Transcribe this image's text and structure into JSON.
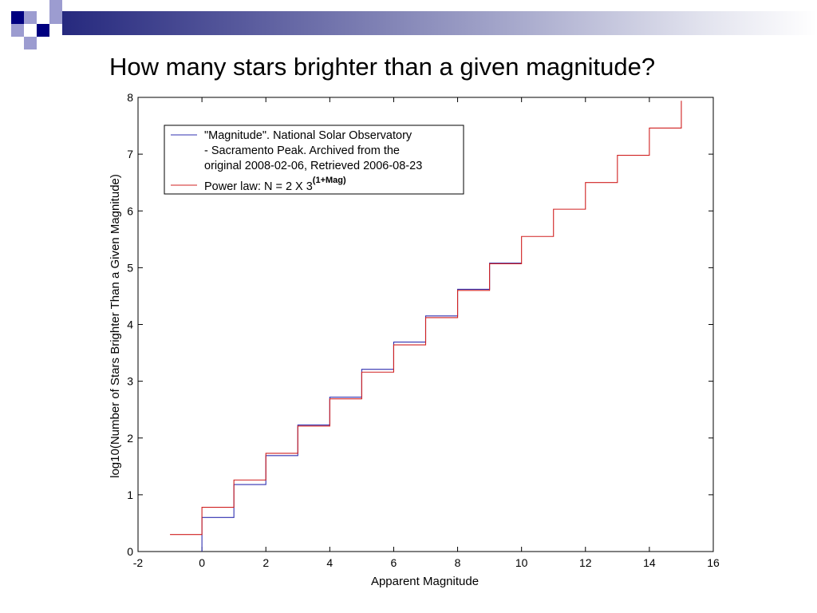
{
  "slide": {
    "title": "How many stars brighter than a given magnitude?",
    "colors": {
      "decor_dark": "#000080",
      "decor_light": "#9c9cd0"
    }
  },
  "chart_data": {
    "type": "line",
    "title": "",
    "xlabel": "Apparent Magnitude",
    "ylabel": "log10(Number of Stars Brighter Than a Given Magnitude)",
    "xlim": [
      -2,
      16
    ],
    "ylim": [
      0,
      8
    ],
    "xticks": [
      -2,
      0,
      2,
      4,
      6,
      8,
      10,
      12,
      14,
      16
    ],
    "yticks": [
      0,
      1,
      2,
      3,
      4,
      5,
      6,
      7,
      8
    ],
    "grid": false,
    "legend_position": "top-left",
    "legend": {
      "entries": [
        {
          "series_index": 0,
          "lines": [
            "\"Magnitude\". National Solar Observatory",
            " - Sacramento Peak. Archived from the",
            "original 2008-02-06, Retrieved 2006-08-23"
          ]
        },
        {
          "series_index": 1,
          "text": "Power law: N = 2 X 3",
          "superscript": "(1+Mag)"
        }
      ]
    },
    "series": [
      {
        "name": "\"Magnitude\". National Solar Observatory - Sacramento Peak. Archived from the original 2008-02-06, Retrieved 2006-08-23",
        "color": "#3030b0",
        "step": true,
        "x": [
          0,
          0,
          1,
          2,
          3,
          4,
          5,
          6,
          7,
          8,
          9,
          10
        ],
        "y": [
          0,
          0.6,
          1.18,
          1.69,
          2.23,
          2.72,
          3.21,
          3.69,
          4.15,
          4.62,
          5.08,
          5.08
        ]
      },
      {
        "name": "Power law: N = 2 X 3(1+Mag)",
        "color": "#d02020",
        "step": true,
        "x": [
          -1,
          0,
          1,
          2,
          3,
          4,
          5,
          6,
          7,
          8,
          9,
          10,
          11,
          12,
          13,
          14,
          15
        ],
        "y": [
          0.3,
          0.78,
          1.26,
          1.73,
          2.21,
          2.69,
          3.16,
          3.64,
          4.12,
          4.6,
          5.07,
          5.55,
          6.03,
          6.5,
          6.98,
          7.46,
          7.94
        ]
      }
    ]
  }
}
